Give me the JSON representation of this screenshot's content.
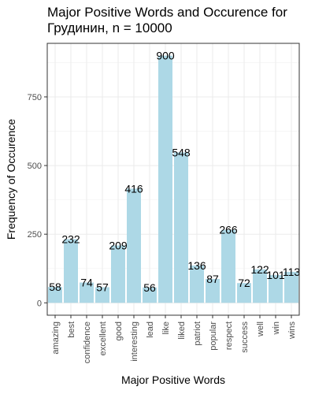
{
  "chart_data": {
    "type": "bar",
    "title": [
      "Major Positive Words and Occurence for",
      "Грудинин, n = 10000"
    ],
    "xlabel": "Major Positive Words",
    "ylabel": "Frequency of Occurence",
    "categories": [
      "amazing",
      "best",
      "confidence",
      "excellent",
      "good",
      "interesting",
      "lead",
      "like",
      "liked",
      "patriot",
      "popular",
      "respect",
      "success",
      "well",
      "win",
      "wins"
    ],
    "values": [
      58,
      232,
      74,
      57,
      209,
      416,
      56,
      900,
      548,
      136,
      87,
      266,
      72,
      122,
      101,
      113
    ],
    "y_ticks": [
      0,
      250,
      500,
      750
    ],
    "ylim": [
      -45,
      945
    ],
    "grid": true,
    "bar_color": "#add8e6"
  }
}
